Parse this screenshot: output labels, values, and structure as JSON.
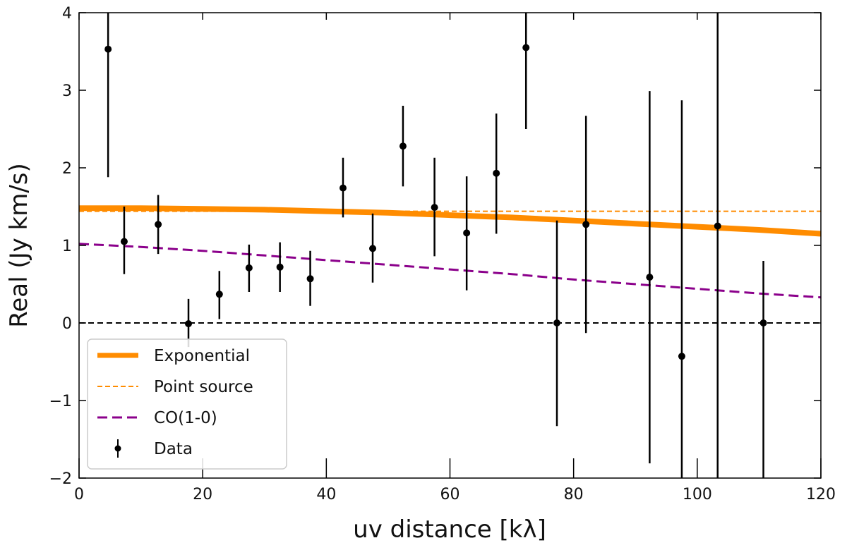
{
  "chart_data": {
    "type": "scatter",
    "xlabel": "uv distance [kλ]",
    "ylabel": "Real (Jy km/s)",
    "xlim": [
      0,
      120
    ],
    "ylim": [
      -2,
      4
    ],
    "xticks": [
      0,
      20,
      40,
      60,
      80,
      100,
      120
    ],
    "yticks": [
      -2,
      -1,
      0,
      1,
      2,
      3,
      4
    ],
    "xtick_labels": [
      "0",
      "20",
      "40",
      "60",
      "80",
      "100",
      "120"
    ],
    "ytick_labels": [
      "−2",
      "−1",
      "0",
      "1",
      "2",
      "3",
      "4"
    ],
    "legend_position": "lower-left",
    "colors": {
      "exponential": "#ff8c00",
      "point_source": "#ff8c00",
      "co10": "#8b008b",
      "data": "#000000",
      "zero_line": "#000000"
    },
    "series": [
      {
        "name": "Exponential",
        "style": "solid-thick",
        "x": [
          0,
          10,
          20,
          30,
          40,
          50,
          60,
          70,
          80,
          90,
          100,
          110,
          120
        ],
        "y": [
          1.48,
          1.48,
          1.47,
          1.46,
          1.44,
          1.42,
          1.39,
          1.36,
          1.32,
          1.28,
          1.24,
          1.2,
          1.15
        ]
      },
      {
        "name": "Point source",
        "style": "dashed-thin",
        "x": [
          0,
          120
        ],
        "y": [
          1.44,
          1.44
        ]
      },
      {
        "name": "CO(1-0)",
        "style": "dashed",
        "x": [
          0,
          10,
          20,
          30,
          40,
          50,
          60,
          70,
          80,
          90,
          100,
          110,
          120
        ],
        "y": [
          1.02,
          0.98,
          0.93,
          0.87,
          0.81,
          0.75,
          0.69,
          0.63,
          0.56,
          0.5,
          0.44,
          0.38,
          0.33
        ]
      },
      {
        "name": "Data",
        "style": "errorbar",
        "points": [
          {
            "x": 4.7,
            "y": 3.53,
            "err_low": 1.65,
            "err_high": 0.6
          },
          {
            "x": 7.3,
            "y": 1.05,
            "err_low": 0.42,
            "err_high": 0.45
          },
          {
            "x": 12.8,
            "y": 1.27,
            "err_low": 0.38,
            "err_high": 0.38
          },
          {
            "x": 17.7,
            "y": -0.01,
            "err_low": 0.3,
            "err_high": 0.32
          },
          {
            "x": 22.7,
            "y": 0.37,
            "err_low": 0.32,
            "err_high": 0.3
          },
          {
            "x": 27.5,
            "y": 0.71,
            "err_low": 0.31,
            "err_high": 0.3
          },
          {
            "x": 32.5,
            "y": 0.72,
            "err_low": 0.32,
            "err_high": 0.32
          },
          {
            "x": 37.4,
            "y": 0.57,
            "err_low": 0.35,
            "err_high": 0.36
          },
          {
            "x": 42.7,
            "y": 1.74,
            "err_low": 0.38,
            "err_high": 0.39
          },
          {
            "x": 47.5,
            "y": 0.96,
            "err_low": 0.44,
            "err_high": 0.45
          },
          {
            "x": 52.4,
            "y": 2.28,
            "err_low": 0.52,
            "err_high": 0.52
          },
          {
            "x": 57.5,
            "y": 1.49,
            "err_low": 0.63,
            "err_high": 0.64
          },
          {
            "x": 62.7,
            "y": 1.16,
            "err_low": 0.74,
            "err_high": 0.73
          },
          {
            "x": 67.5,
            "y": 1.93,
            "err_low": 0.78,
            "err_high": 0.77
          },
          {
            "x": 72.3,
            "y": 3.55,
            "err_low": 1.05,
            "err_high": 0.45
          },
          {
            "x": 77.3,
            "y": 0.0,
            "err_low": 1.33,
            "err_high": 1.32
          },
          {
            "x": 82.0,
            "y": 1.27,
            "err_low": 1.4,
            "err_high": 1.4
          },
          {
            "x": 92.3,
            "y": 0.59,
            "err_low": 2.4,
            "err_high": 2.4
          },
          {
            "x": 97.5,
            "y": -0.43,
            "err_low": 1.57,
            "err_high": 3.3
          },
          {
            "x": 103.3,
            "y": 1.25,
            "err_low": 3.25,
            "err_high": 2.75
          },
          {
            "x": 110.7,
            "y": 0.0,
            "err_low": 2.0,
            "err_high": 0.8
          }
        ]
      }
    ],
    "reference_lines": [
      {
        "name": "zero-line",
        "y": 0,
        "style": "dashed"
      }
    ]
  }
}
